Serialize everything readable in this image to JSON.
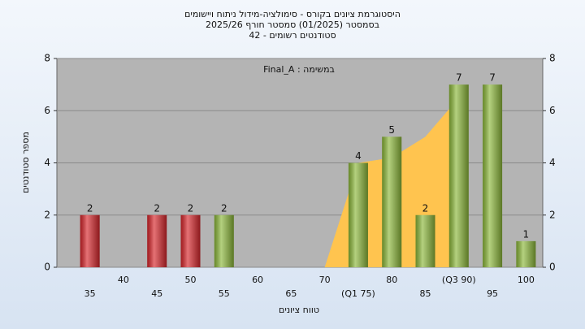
{
  "chart_data": {
    "type": "bar",
    "title": [
      "היסטוגרמת ציונים בקורס - סימולציה-מידול ניתוח ויישומים",
      "בסמסטר  (01/2025)  סמסטר חורף 2025/26",
      "42 - סטודנטים רשומים"
    ],
    "annotation": "Final_A : במשימה",
    "x_label": "טווח ציונים",
    "y_label": "מספר סטודנטים",
    "categories": [
      "35",
      "40",
      "45",
      "50",
      "55",
      "60",
      "65",
      "70",
      "(Q1 75)",
      "80",
      "85",
      "(Q3 90)",
      "95",
      "100"
    ],
    "values": [
      2,
      0,
      2,
      2,
      2,
      0,
      0,
      0,
      4,
      5,
      2,
      7,
      7,
      1
    ],
    "colors": [
      "#d8262b",
      "#d8262b",
      "#d8262b",
      "#d8262b",
      "#8cb83a",
      "#8cb83a",
      "#8cb83a",
      "#8cb83a",
      "#8cb83a",
      "#8cb83a",
      "#8cb83a",
      "#8cb83a",
      "#8cb83a",
      "#8cb83a"
    ],
    "area": {
      "color": "#ffc44f",
      "values": [
        null,
        null,
        null,
        null,
        null,
        null,
        null,
        0,
        4,
        4.2,
        5,
        6.5,
        null,
        null
      ]
    },
    "ylim": [
      0,
      8
    ],
    "yticks": [
      0,
      2,
      4,
      6,
      8
    ],
    "y2lim": [
      0,
      8
    ],
    "y2ticks": [
      0,
      2,
      4,
      6,
      8
    ],
    "grid": true
  }
}
